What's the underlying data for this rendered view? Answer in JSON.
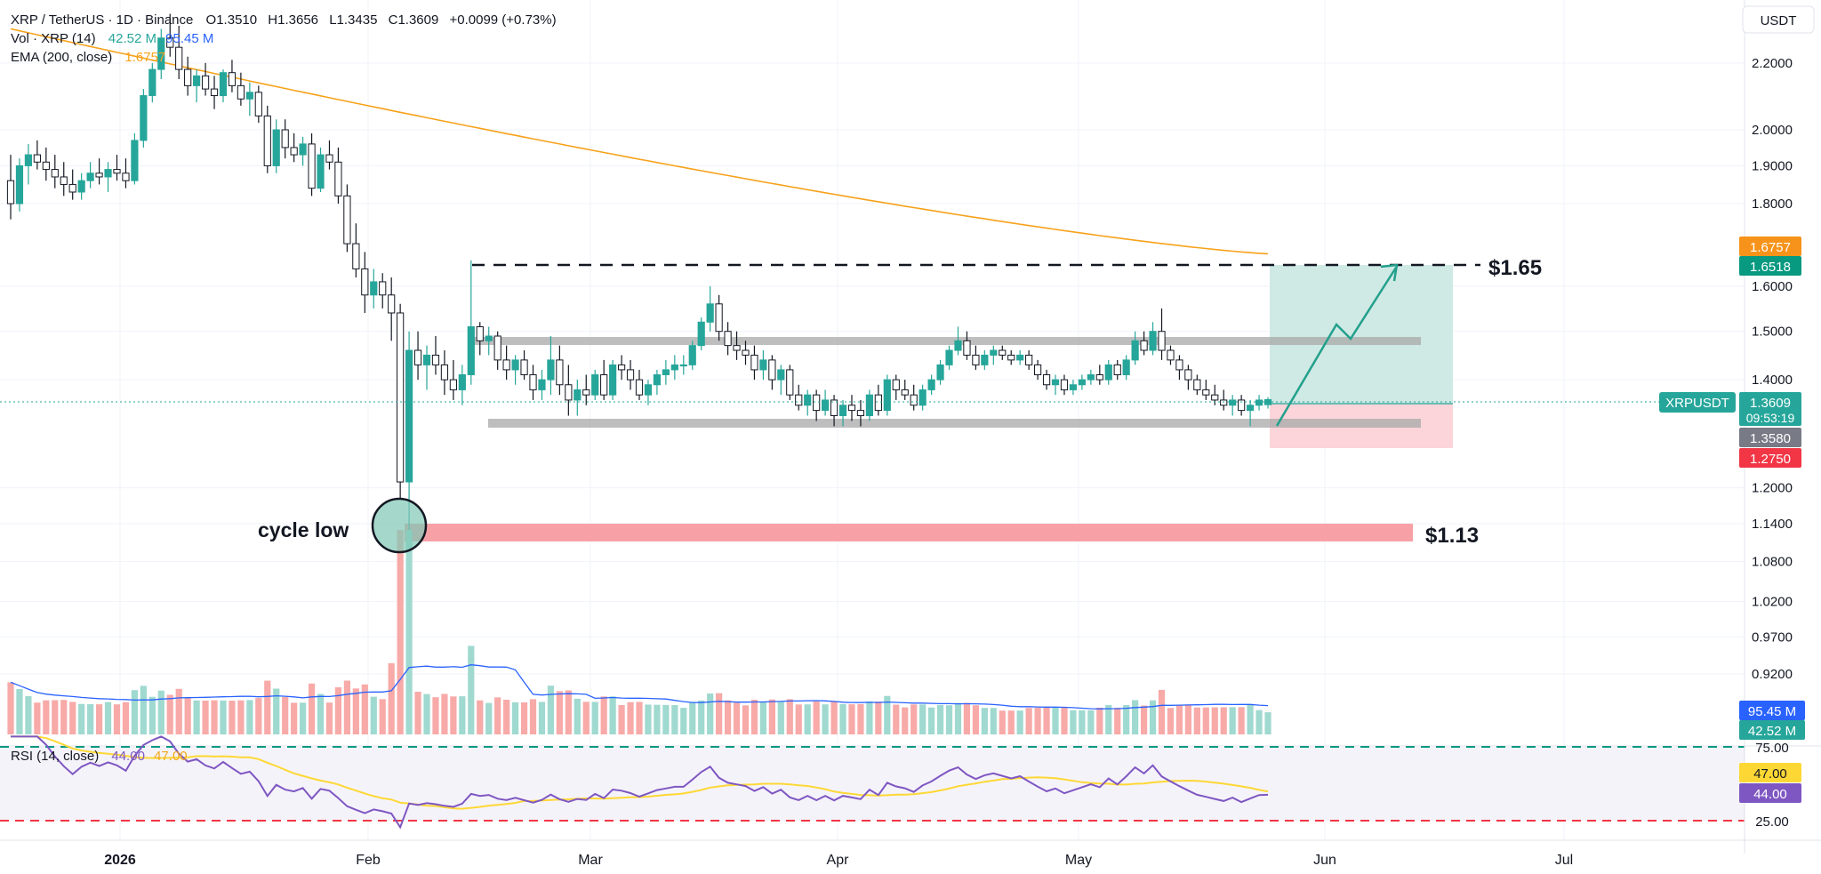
{
  "legend": {
    "symbol": "XRP / TetherUS · 1D · Binance",
    "open_label": "O",
    "open": "1.3510",
    "high_label": "H",
    "high": "1.3656",
    "low_label": "L",
    "low": "1.3435",
    "close_label": "C",
    "close": "1.3609",
    "change": "+0.0099 (+0.73%)",
    "vol_label": "Vol · XRP (14)",
    "vol_value1": "42.52 M",
    "vol_value2": "95.45 M",
    "ema_label": "EMA (200, close)",
    "ema_value": "1.6757",
    "rsi_label": "RSI (14, close)",
    "rsi_value1": "44.00",
    "rsi_value2": "47.00"
  },
  "price_axis": {
    "currency": "USDT",
    "ticks": [
      "2.2000",
      "2.0000",
      "1.9000",
      "1.8000",
      "1.6000",
      "1.5000",
      "1.4000",
      "1.2000",
      "1.1400",
      "1.0800",
      "1.0200",
      "0.9700",
      "0.9200"
    ]
  },
  "price_badges": {
    "ema": "1.6757",
    "target": "1.6518",
    "symbol": "XRPUSDT",
    "last": "1.3609",
    "countdown": "09:53:19",
    "entry": "1.3580",
    "stop": "1.2750",
    "vol_ma": "95.45 M",
    "vol_last": "42.52 M"
  },
  "rsi_axis": {
    "upper": "75.00",
    "rsi_ma": "47.00",
    "rsi": "44.00",
    "lower": "25.00"
  },
  "time_axis": [
    "2026",
    "Feb",
    "Mar",
    "Apr",
    "May",
    "Jun",
    "Jul"
  ],
  "annotations": {
    "resistance_label": "$1.65",
    "support_label": "$1.13",
    "cycle_label": "cycle low"
  },
  "colors": {
    "up": "#26a69a",
    "down": "#131722",
    "ema": "#f7a21b",
    "rsi": "#7e57c2",
    "rsi_ma": "#fdd835",
    "vol_ma": "#2962ff",
    "support": "#f7a1a7",
    "target_zone": "#cfe9e4",
    "stop_zone": "#fbd5d9"
  },
  "chart_data": {
    "type": "candlestick",
    "symbol": "XRPUSDT",
    "interval": "1D",
    "candles_ohlc": [
      [
        1.86,
        1.93,
        1.76,
        1.8
      ],
      [
        1.8,
        1.92,
        1.78,
        1.9
      ],
      [
        1.9,
        1.96,
        1.85,
        1.93
      ],
      [
        1.93,
        1.97,
        1.89,
        1.91
      ],
      [
        1.91,
        1.95,
        1.86,
        1.89
      ],
      [
        1.89,
        1.93,
        1.84,
        1.87
      ],
      [
        1.87,
        1.91,
        1.82,
        1.85
      ],
      [
        1.85,
        1.89,
        1.81,
        1.83
      ],
      [
        1.83,
        1.88,
        1.81,
        1.86
      ],
      [
        1.86,
        1.91,
        1.84,
        1.88
      ],
      [
        1.88,
        1.92,
        1.85,
        1.87
      ],
      [
        1.87,
        1.91,
        1.83,
        1.89
      ],
      [
        1.89,
        1.93,
        1.86,
        1.88
      ],
      [
        1.88,
        1.92,
        1.84,
        1.86
      ],
      [
        1.86,
        1.99,
        1.85,
        1.97
      ],
      [
        1.97,
        2.12,
        1.95,
        2.1
      ],
      [
        2.1,
        2.2,
        2.08,
        2.18
      ],
      [
        2.18,
        2.31,
        2.15,
        2.28
      ],
      [
        2.28,
        2.36,
        2.22,
        2.25
      ],
      [
        2.25,
        2.32,
        2.15,
        2.18
      ],
      [
        2.18,
        2.22,
        2.1,
        2.13
      ],
      [
        2.13,
        2.18,
        2.08,
        2.16
      ],
      [
        2.16,
        2.2,
        2.1,
        2.12
      ],
      [
        2.12,
        2.16,
        2.06,
        2.1
      ],
      [
        2.1,
        2.18,
        2.08,
        2.17
      ],
      [
        2.17,
        2.21,
        2.11,
        2.13
      ],
      [
        2.13,
        2.17,
        2.07,
        2.09
      ],
      [
        2.09,
        2.14,
        2.04,
        2.11
      ],
      [
        2.11,
        2.13,
        2.02,
        2.04
      ],
      [
        2.04,
        2.07,
        1.88,
        1.9
      ],
      [
        1.9,
        2.03,
        1.88,
        2.0
      ],
      [
        2.0,
        2.03,
        1.92,
        1.95
      ],
      [
        1.95,
        1.99,
        1.91,
        1.93
      ],
      [
        1.93,
        1.98,
        1.9,
        1.96
      ],
      [
        1.96,
        1.99,
        1.82,
        1.84
      ],
      [
        1.84,
        1.95,
        1.83,
        1.93
      ],
      [
        1.93,
        1.97,
        1.89,
        1.91
      ],
      [
        1.91,
        1.95,
        1.8,
        1.82
      ],
      [
        1.82,
        1.85,
        1.68,
        1.7
      ],
      [
        1.7,
        1.75,
        1.62,
        1.64
      ],
      [
        1.64,
        1.68,
        1.54,
        1.58
      ],
      [
        1.58,
        1.64,
        1.55,
        1.61
      ],
      [
        1.61,
        1.63,
        1.55,
        1.58
      ],
      [
        1.58,
        1.62,
        1.48,
        1.54
      ],
      [
        1.54,
        1.56,
        1.18,
        1.21
      ],
      [
        1.21,
        1.5,
        1.13,
        1.46
      ],
      [
        1.46,
        1.5,
        1.4,
        1.43
      ],
      [
        1.43,
        1.47,
        1.38,
        1.45
      ],
      [
        1.45,
        1.49,
        1.41,
        1.43
      ],
      [
        1.43,
        1.46,
        1.37,
        1.4
      ],
      [
        1.4,
        1.44,
        1.36,
        1.38
      ],
      [
        1.38,
        1.43,
        1.35,
        1.41
      ],
      [
        1.41,
        1.66,
        1.39,
        1.51
      ],
      [
        1.51,
        1.52,
        1.45,
        1.48
      ],
      [
        1.48,
        1.51,
        1.45,
        1.49
      ],
      [
        1.49,
        1.5,
        1.42,
        1.44
      ],
      [
        1.44,
        1.47,
        1.4,
        1.42
      ],
      [
        1.42,
        1.45,
        1.39,
        1.44
      ],
      [
        1.44,
        1.46,
        1.4,
        1.41
      ],
      [
        1.41,
        1.43,
        1.36,
        1.38
      ],
      [
        1.38,
        1.42,
        1.36,
        1.4
      ],
      [
        1.4,
        1.49,
        1.37,
        1.44
      ],
      [
        1.44,
        1.47,
        1.37,
        1.39
      ],
      [
        1.39,
        1.43,
        1.33,
        1.36
      ],
      [
        1.36,
        1.4,
        1.33,
        1.38
      ],
      [
        1.38,
        1.41,
        1.35,
        1.37
      ],
      [
        1.37,
        1.42,
        1.36,
        1.41
      ],
      [
        1.41,
        1.44,
        1.36,
        1.37
      ],
      [
        1.37,
        1.44,
        1.36,
        1.43
      ],
      [
        1.43,
        1.45,
        1.4,
        1.42
      ],
      [
        1.42,
        1.44,
        1.38,
        1.4
      ],
      [
        1.4,
        1.42,
        1.36,
        1.37
      ],
      [
        1.37,
        1.4,
        1.35,
        1.39
      ],
      [
        1.39,
        1.42,
        1.37,
        1.41
      ],
      [
        1.41,
        1.44,
        1.39,
        1.42
      ],
      [
        1.42,
        1.45,
        1.4,
        1.43
      ],
      [
        1.43,
        1.45,
        1.41,
        1.43
      ],
      [
        1.43,
        1.48,
        1.42,
        1.47
      ],
      [
        1.47,
        1.53,
        1.46,
        1.52
      ],
      [
        1.52,
        1.6,
        1.5,
        1.56
      ],
      [
        1.56,
        1.58,
        1.48,
        1.5
      ],
      [
        1.5,
        1.52,
        1.45,
        1.47
      ],
      [
        1.47,
        1.5,
        1.44,
        1.46
      ],
      [
        1.46,
        1.48,
        1.43,
        1.45
      ],
      [
        1.45,
        1.47,
        1.4,
        1.42
      ],
      [
        1.42,
        1.46,
        1.4,
        1.44
      ],
      [
        1.44,
        1.45,
        1.38,
        1.4
      ],
      [
        1.4,
        1.43,
        1.37,
        1.42
      ],
      [
        1.42,
        1.43,
        1.36,
        1.37
      ],
      [
        1.37,
        1.39,
        1.34,
        1.35
      ],
      [
        1.35,
        1.38,
        1.33,
        1.37
      ],
      [
        1.37,
        1.38,
        1.32,
        1.34
      ],
      [
        1.34,
        1.38,
        1.33,
        1.36
      ],
      [
        1.36,
        1.37,
        1.31,
        1.33
      ],
      [
        1.33,
        1.36,
        1.31,
        1.35
      ],
      [
        1.35,
        1.37,
        1.32,
        1.34
      ],
      [
        1.34,
        1.36,
        1.31,
        1.33
      ],
      [
        1.33,
        1.38,
        1.32,
        1.37
      ],
      [
        1.37,
        1.39,
        1.33,
        1.34
      ],
      [
        1.34,
        1.41,
        1.33,
        1.4
      ],
      [
        1.4,
        1.41,
        1.36,
        1.38
      ],
      [
        1.38,
        1.4,
        1.36,
        1.37
      ],
      [
        1.37,
        1.39,
        1.34,
        1.35
      ],
      [
        1.35,
        1.39,
        1.34,
        1.38
      ],
      [
        1.38,
        1.41,
        1.37,
        1.4
      ],
      [
        1.4,
        1.44,
        1.39,
        1.43
      ],
      [
        1.43,
        1.47,
        1.42,
        1.46
      ],
      [
        1.46,
        1.51,
        1.45,
        1.48
      ],
      [
        1.48,
        1.5,
        1.44,
        1.45
      ],
      [
        1.45,
        1.47,
        1.42,
        1.43
      ],
      [
        1.43,
        1.46,
        1.42,
        1.45
      ],
      [
        1.45,
        1.47,
        1.43,
        1.46
      ],
      [
        1.46,
        1.47,
        1.44,
        1.45
      ],
      [
        1.45,
        1.46,
        1.43,
        1.44
      ],
      [
        1.44,
        1.46,
        1.43,
        1.45
      ],
      [
        1.45,
        1.46,
        1.42,
        1.43
      ],
      [
        1.43,
        1.44,
        1.4,
        1.41
      ],
      [
        1.41,
        1.42,
        1.38,
        1.39
      ],
      [
        1.39,
        1.41,
        1.37,
        1.4
      ],
      [
        1.4,
        1.41,
        1.37,
        1.38
      ],
      [
        1.38,
        1.4,
        1.37,
        1.39
      ],
      [
        1.39,
        1.41,
        1.38,
        1.4
      ],
      [
        1.4,
        1.42,
        1.39,
        1.41
      ],
      [
        1.41,
        1.43,
        1.39,
        1.4
      ],
      [
        1.4,
        1.44,
        1.39,
        1.43
      ],
      [
        1.43,
        1.44,
        1.4,
        1.41
      ],
      [
        1.41,
        1.45,
        1.4,
        1.44
      ],
      [
        1.44,
        1.5,
        1.43,
        1.48
      ],
      [
        1.48,
        1.5,
        1.45,
        1.46
      ],
      [
        1.46,
        1.52,
        1.45,
        1.5
      ],
      [
        1.5,
        1.55,
        1.44,
        1.46
      ],
      [
        1.46,
        1.47,
        1.43,
        1.44
      ],
      [
        1.44,
        1.45,
        1.4,
        1.42
      ],
      [
        1.42,
        1.43,
        1.38,
        1.4
      ],
      [
        1.4,
        1.41,
        1.37,
        1.38
      ],
      [
        1.38,
        1.4,
        1.36,
        1.37
      ],
      [
        1.37,
        1.39,
        1.35,
        1.36
      ],
      [
        1.36,
        1.38,
        1.34,
        1.35
      ],
      [
        1.35,
        1.37,
        1.33,
        1.36
      ],
      [
        1.36,
        1.37,
        1.33,
        1.34
      ],
      [
        1.34,
        1.36,
        1.31,
        1.35
      ],
      [
        1.35,
        1.37,
        1.34,
        1.36
      ],
      [
        1.351,
        1.3656,
        1.3435,
        1.3609
      ]
    ],
    "volume_ma": "95.45 M",
    "volume_last": "42.52 M",
    "ema200_start": 2.31,
    "ema200_end": 1.6757,
    "rsi_last": 44.0,
    "rsi_ma_last": 47.0,
    "rsi_bands": [
      25,
      75
    ],
    "levels": {
      "resistance": 1.65,
      "range_top": 1.49,
      "range_bottom": 1.358,
      "support": 1.13
    },
    "position": {
      "entry": 1.358,
      "target": 1.6518,
      "stop": 1.275
    },
    "price_range": [
      0.88,
      2.36
    ],
    "x_ticks": [
      "2026",
      "Feb",
      "Mar",
      "Apr",
      "May",
      "Jun",
      "Jul"
    ]
  }
}
